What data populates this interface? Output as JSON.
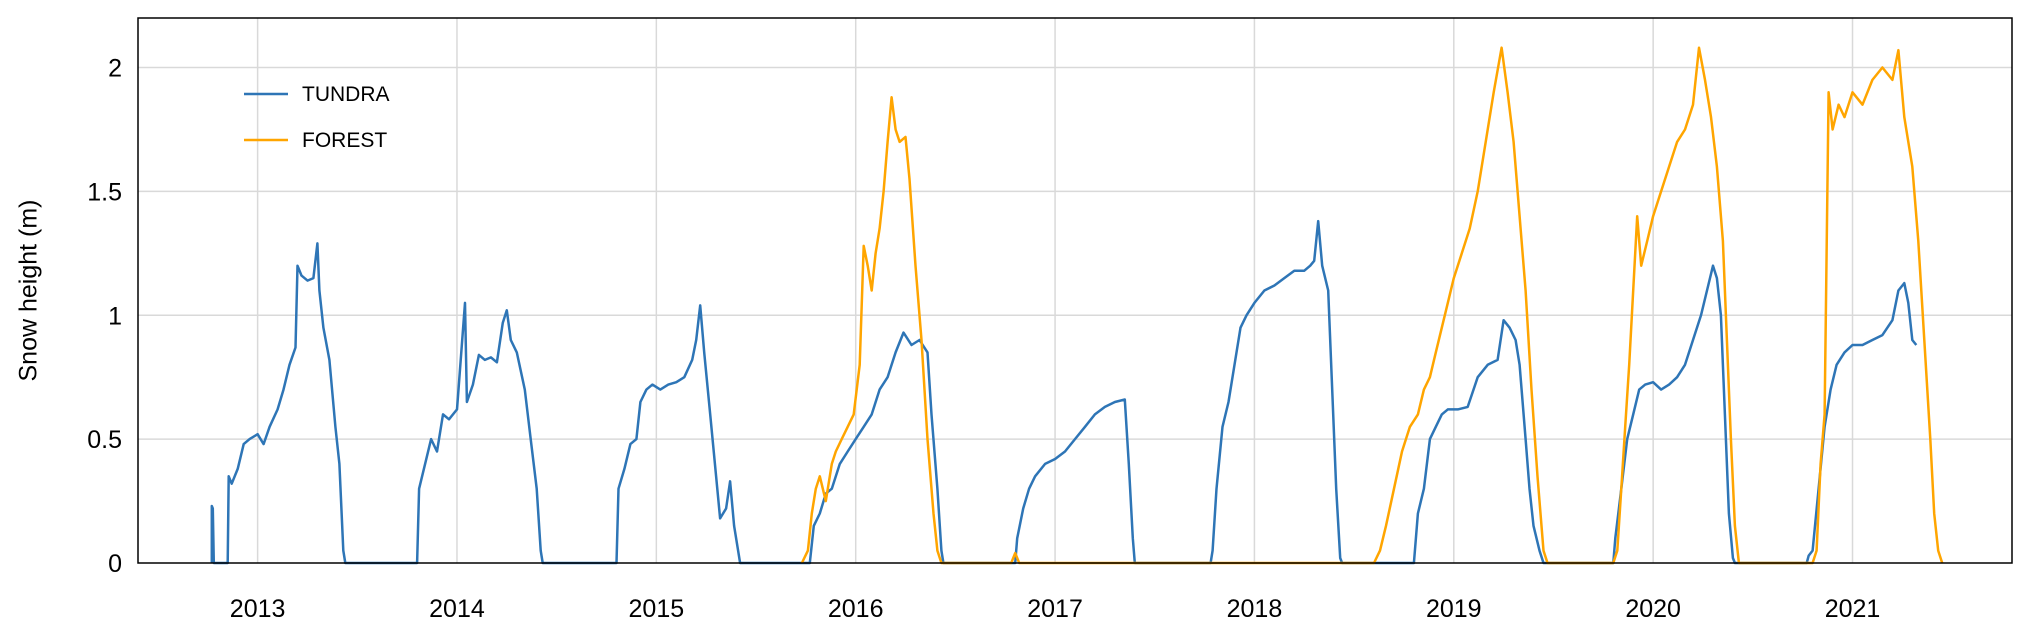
{
  "chart_data": {
    "type": "line",
    "title": "",
    "xlabel": "",
    "ylabel": "Snow height  (m)",
    "x_tick_labels": [
      "2013",
      "2014",
      "2015",
      "2016",
      "2017",
      "2018",
      "2019",
      "2020",
      "2021"
    ],
    "y_tick_labels": [
      "0",
      "0.5",
      "1",
      "1.5",
      "2"
    ],
    "xlim": [
      2012.4,
      2021.8
    ],
    "ylim": [
      0,
      2.2
    ],
    "grid": true,
    "legend_position": "top-left",
    "series": [
      {
        "name": "TUNDRA",
        "color": "#2e75b6",
        "points": [
          [
            2012.77,
            0
          ],
          [
            2012.77,
            0.23
          ],
          [
            2012.775,
            0.22
          ],
          [
            2012.78,
            0
          ],
          [
            2012.85,
            0
          ],
          [
            2012.855,
            0.35
          ],
          [
            2012.87,
            0.32
          ],
          [
            2012.9,
            0.38
          ],
          [
            2012.93,
            0.48
          ],
          [
            2012.96,
            0.5
          ],
          [
            2013.0,
            0.52
          ],
          [
            2013.03,
            0.48
          ],
          [
            2013.06,
            0.55
          ],
          [
            2013.1,
            0.62
          ],
          [
            2013.13,
            0.7
          ],
          [
            2013.16,
            0.8
          ],
          [
            2013.19,
            0.87
          ],
          [
            2013.2,
            1.2
          ],
          [
            2013.22,
            1.16
          ],
          [
            2013.25,
            1.14
          ],
          [
            2013.28,
            1.15
          ],
          [
            2013.3,
            1.29
          ],
          [
            2013.31,
            1.1
          ],
          [
            2013.33,
            0.95
          ],
          [
            2013.36,
            0.82
          ],
          [
            2013.39,
            0.55
          ],
          [
            2013.41,
            0.4
          ],
          [
            2013.43,
            0.05
          ],
          [
            2013.44,
            0
          ],
          [
            2013.8,
            0
          ],
          [
            2013.81,
            0.3
          ],
          [
            2013.84,
            0.4
          ],
          [
            2013.87,
            0.5
          ],
          [
            2013.9,
            0.45
          ],
          [
            2013.93,
            0.6
          ],
          [
            2013.96,
            0.58
          ],
          [
            2014.0,
            0.62
          ],
          [
            2014.04,
            1.05
          ],
          [
            2014.05,
            0.65
          ],
          [
            2014.08,
            0.72
          ],
          [
            2014.11,
            0.84
          ],
          [
            2014.14,
            0.82
          ],
          [
            2014.17,
            0.83
          ],
          [
            2014.2,
            0.81
          ],
          [
            2014.23,
            0.97
          ],
          [
            2014.25,
            1.02
          ],
          [
            2014.27,
            0.9
          ],
          [
            2014.3,
            0.85
          ],
          [
            2014.34,
            0.7
          ],
          [
            2014.37,
            0.5
          ],
          [
            2014.4,
            0.3
          ],
          [
            2014.42,
            0.05
          ],
          [
            2014.43,
            0
          ],
          [
            2014.8,
            0
          ],
          [
            2014.81,
            0.3
          ],
          [
            2014.84,
            0.38
          ],
          [
            2014.87,
            0.48
          ],
          [
            2014.9,
            0.5
          ],
          [
            2014.92,
            0.65
          ],
          [
            2014.95,
            0.7
          ],
          [
            2014.98,
            0.72
          ],
          [
            2015.02,
            0.7
          ],
          [
            2015.06,
            0.72
          ],
          [
            2015.1,
            0.73
          ],
          [
            2015.14,
            0.75
          ],
          [
            2015.18,
            0.82
          ],
          [
            2015.2,
            0.9
          ],
          [
            2015.22,
            1.04
          ],
          [
            2015.24,
            0.85
          ],
          [
            2015.27,
            0.6
          ],
          [
            2015.3,
            0.35
          ],
          [
            2015.32,
            0.18
          ],
          [
            2015.35,
            0.22
          ],
          [
            2015.37,
            0.33
          ],
          [
            2015.39,
            0.15
          ],
          [
            2015.41,
            0.05
          ],
          [
            2015.42,
            0
          ],
          [
            2015.77,
            0
          ],
          [
            2015.79,
            0.15
          ],
          [
            2015.82,
            0.2
          ],
          [
            2015.85,
            0.28
          ],
          [
            2015.88,
            0.3
          ],
          [
            2015.92,
            0.4
          ],
          [
            2015.96,
            0.45
          ],
          [
            2016.0,
            0.5
          ],
          [
            2016.04,
            0.55
          ],
          [
            2016.08,
            0.6
          ],
          [
            2016.12,
            0.7
          ],
          [
            2016.16,
            0.75
          ],
          [
            2016.2,
            0.85
          ],
          [
            2016.24,
            0.93
          ],
          [
            2016.28,
            0.88
          ],
          [
            2016.32,
            0.9
          ],
          [
            2016.36,
            0.85
          ],
          [
            2016.38,
            0.6
          ],
          [
            2016.41,
            0.3
          ],
          [
            2016.43,
            0.05
          ],
          [
            2016.44,
            0
          ],
          [
            2016.8,
            0
          ],
          [
            2016.81,
            0.1
          ],
          [
            2016.84,
            0.22
          ],
          [
            2016.87,
            0.3
          ],
          [
            2016.9,
            0.35
          ],
          [
            2016.95,
            0.4
          ],
          [
            2017.0,
            0.42
          ],
          [
            2017.05,
            0.45
          ],
          [
            2017.1,
            0.5
          ],
          [
            2017.15,
            0.55
          ],
          [
            2017.2,
            0.6
          ],
          [
            2017.25,
            0.63
          ],
          [
            2017.3,
            0.65
          ],
          [
            2017.35,
            0.66
          ],
          [
            2017.37,
            0.4
          ],
          [
            2017.39,
            0.1
          ],
          [
            2017.4,
            0
          ],
          [
            2017.78,
            0
          ],
          [
            2017.79,
            0.05
          ],
          [
            2017.81,
            0.3
          ],
          [
            2017.84,
            0.55
          ],
          [
            2017.87,
            0.65
          ],
          [
            2017.9,
            0.8
          ],
          [
            2017.93,
            0.95
          ],
          [
            2017.96,
            1.0
          ],
          [
            2018.0,
            1.05
          ],
          [
            2018.05,
            1.1
          ],
          [
            2018.1,
            1.12
          ],
          [
            2018.15,
            1.15
          ],
          [
            2018.2,
            1.18
          ],
          [
            2018.25,
            1.18
          ],
          [
            2018.28,
            1.2
          ],
          [
            2018.3,
            1.22
          ],
          [
            2018.32,
            1.38
          ],
          [
            2018.34,
            1.2
          ],
          [
            2018.37,
            1.1
          ],
          [
            2018.39,
            0.7
          ],
          [
            2018.41,
            0.3
          ],
          [
            2018.43,
            0.02
          ],
          [
            2018.44,
            0
          ],
          [
            2018.8,
            0
          ],
          [
            2018.82,
            0.2
          ],
          [
            2018.85,
            0.3
          ],
          [
            2018.88,
            0.5
          ],
          [
            2018.91,
            0.55
          ],
          [
            2018.94,
            0.6
          ],
          [
            2018.97,
            0.62
          ],
          [
            2019.02,
            0.62
          ],
          [
            2019.07,
            0.63
          ],
          [
            2019.12,
            0.75
          ],
          [
            2019.17,
            0.8
          ],
          [
            2019.22,
            0.82
          ],
          [
            2019.25,
            0.98
          ],
          [
            2019.28,
            0.95
          ],
          [
            2019.31,
            0.9
          ],
          [
            2019.33,
            0.8
          ],
          [
            2019.36,
            0.5
          ],
          [
            2019.38,
            0.3
          ],
          [
            2019.4,
            0.15
          ],
          [
            2019.43,
            0.05
          ],
          [
            2019.45,
            0
          ],
          [
            2019.8,
            0
          ],
          [
            2019.81,
            0.1
          ],
          [
            2019.84,
            0.3
          ],
          [
            2019.87,
            0.5
          ],
          [
            2019.9,
            0.6
          ],
          [
            2019.93,
            0.7
          ],
          [
            2019.96,
            0.72
          ],
          [
            2020.0,
            0.73
          ],
          [
            2020.04,
            0.7
          ],
          [
            2020.08,
            0.72
          ],
          [
            2020.12,
            0.75
          ],
          [
            2020.16,
            0.8
          ],
          [
            2020.2,
            0.9
          ],
          [
            2020.24,
            1.0
          ],
          [
            2020.27,
            1.1
          ],
          [
            2020.3,
            1.2
          ],
          [
            2020.32,
            1.15
          ],
          [
            2020.34,
            1.0
          ],
          [
            2020.36,
            0.6
          ],
          [
            2020.38,
            0.2
          ],
          [
            2020.4,
            0.02
          ],
          [
            2020.41,
            0
          ],
          [
            2020.77,
            0
          ],
          [
            2020.78,
            0.03
          ],
          [
            2020.8,
            0.05
          ],
          [
            2020.83,
            0.3
          ],
          [
            2020.86,
            0.55
          ],
          [
            2020.89,
            0.7
          ],
          [
            2020.92,
            0.8
          ],
          [
            2020.96,
            0.85
          ],
          [
            2021.0,
            0.88
          ],
          [
            2021.05,
            0.88
          ],
          [
            2021.1,
            0.9
          ],
          [
            2021.15,
            0.92
          ],
          [
            2021.2,
            0.98
          ],
          [
            2021.23,
            1.1
          ],
          [
            2021.26,
            1.13
          ],
          [
            2021.28,
            1.05
          ],
          [
            2021.3,
            0.9
          ],
          [
            2021.32,
            0.88
          ]
        ]
      },
      {
        "name": "FOREST",
        "color": "#ffa500",
        "points": [
          [
            2015.73,
            0
          ],
          [
            2015.76,
            0.05
          ],
          [
            2015.78,
            0.2
          ],
          [
            2015.8,
            0.3
          ],
          [
            2015.82,
            0.35
          ],
          [
            2015.85,
            0.25
          ],
          [
            2015.88,
            0.4
          ],
          [
            2015.9,
            0.45
          ],
          [
            2015.93,
            0.5
          ],
          [
            2015.96,
            0.55
          ],
          [
            2015.99,
            0.6
          ],
          [
            2016.02,
            0.8
          ],
          [
            2016.04,
            1.28
          ],
          [
            2016.06,
            1.2
          ],
          [
            2016.08,
            1.1
          ],
          [
            2016.1,
            1.25
          ],
          [
            2016.12,
            1.35
          ],
          [
            2016.14,
            1.5
          ],
          [
            2016.16,
            1.7
          ],
          [
            2016.18,
            1.88
          ],
          [
            2016.2,
            1.75
          ],
          [
            2016.22,
            1.7
          ],
          [
            2016.25,
            1.72
          ],
          [
            2016.27,
            1.55
          ],
          [
            2016.3,
            1.2
          ],
          [
            2016.33,
            0.9
          ],
          [
            2016.36,
            0.5
          ],
          [
            2016.39,
            0.2
          ],
          [
            2016.41,
            0.05
          ],
          [
            2016.43,
            0
          ],
          [
            2016.78,
            0
          ],
          [
            2016.8,
            0.04
          ],
          [
            2016.82,
            0
          ],
          [
            2018.6,
            0
          ],
          [
            2018.63,
            0.05
          ],
          [
            2018.66,
            0.15
          ],
          [
            2018.7,
            0.3
          ],
          [
            2018.74,
            0.45
          ],
          [
            2018.78,
            0.55
          ],
          [
            2018.82,
            0.6
          ],
          [
            2018.85,
            0.7
          ],
          [
            2018.88,
            0.75
          ],
          [
            2018.91,
            0.85
          ],
          [
            2018.94,
            0.95
          ],
          [
            2018.97,
            1.05
          ],
          [
            2019.0,
            1.15
          ],
          [
            2019.04,
            1.25
          ],
          [
            2019.08,
            1.35
          ],
          [
            2019.12,
            1.5
          ],
          [
            2019.16,
            1.7
          ],
          [
            2019.2,
            1.9
          ],
          [
            2019.24,
            2.08
          ],
          [
            2019.27,
            1.9
          ],
          [
            2019.3,
            1.7
          ],
          [
            2019.33,
            1.4
          ],
          [
            2019.36,
            1.1
          ],
          [
            2019.39,
            0.7
          ],
          [
            2019.42,
            0.35
          ],
          [
            2019.45,
            0.05
          ],
          [
            2019.47,
            0
          ],
          [
            2019.8,
            0
          ],
          [
            2019.82,
            0.05
          ],
          [
            2019.84,
            0.3
          ],
          [
            2019.86,
            0.55
          ],
          [
            2019.88,
            0.8
          ],
          [
            2019.9,
            1.1
          ],
          [
            2019.92,
            1.4
          ],
          [
            2019.94,
            1.2
          ],
          [
            2019.97,
            1.3
          ],
          [
            2020.0,
            1.4
          ],
          [
            2020.04,
            1.5
          ],
          [
            2020.08,
            1.6
          ],
          [
            2020.12,
            1.7
          ],
          [
            2020.16,
            1.75
          ],
          [
            2020.2,
            1.85
          ],
          [
            2020.23,
            2.08
          ],
          [
            2020.26,
            1.95
          ],
          [
            2020.29,
            1.8
          ],
          [
            2020.32,
            1.6
          ],
          [
            2020.35,
            1.3
          ],
          [
            2020.37,
            0.9
          ],
          [
            2020.39,
            0.5
          ],
          [
            2020.41,
            0.15
          ],
          [
            2020.43,
            0
          ],
          [
            2020.8,
            0
          ],
          [
            2020.82,
            0.05
          ],
          [
            2020.84,
            0.4
          ],
          [
            2020.86,
            0.6
          ],
          [
            2020.88,
            1.9
          ],
          [
            2020.9,
            1.75
          ],
          [
            2020.93,
            1.85
          ],
          [
            2020.96,
            1.8
          ],
          [
            2021.0,
            1.9
          ],
          [
            2021.05,
            1.85
          ],
          [
            2021.1,
            1.95
          ],
          [
            2021.15,
            2.0
          ],
          [
            2021.2,
            1.95
          ],
          [
            2021.23,
            2.07
          ],
          [
            2021.26,
            1.8
          ],
          [
            2021.3,
            1.6
          ],
          [
            2021.33,
            1.3
          ],
          [
            2021.36,
            0.9
          ],
          [
            2021.39,
            0.5
          ],
          [
            2021.41,
            0.2
          ],
          [
            2021.43,
            0.05
          ],
          [
            2021.45,
            0
          ]
        ]
      }
    ]
  }
}
